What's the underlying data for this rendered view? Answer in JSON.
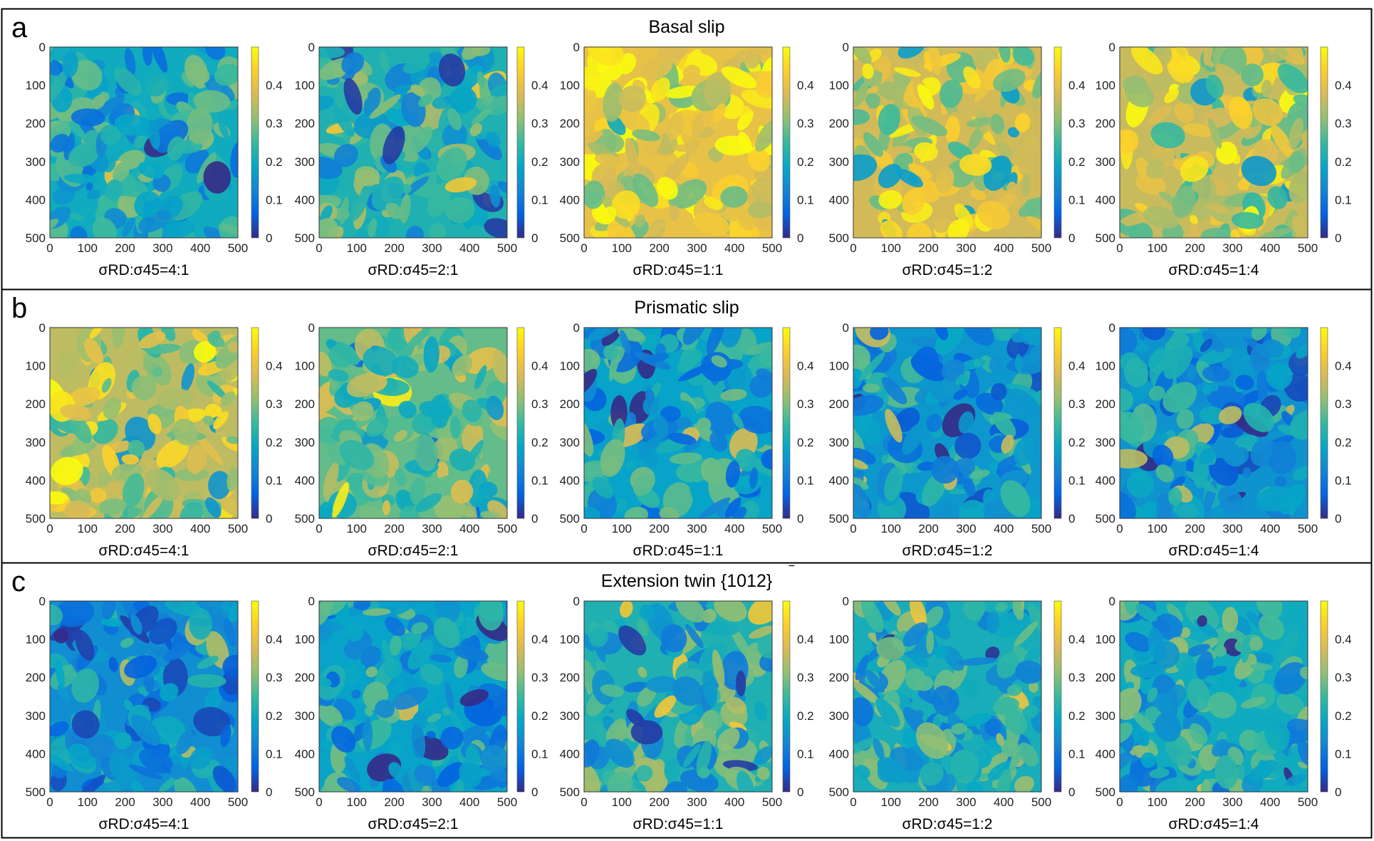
{
  "chart_data": {
    "type": "heatmap",
    "colormap": "parula",
    "colors": {
      "parula": [
        "#352a87",
        "#0363e1",
        "#1485d4",
        "#06a7c6",
        "#38b99e",
        "#92bf73",
        "#d9ba56",
        "#fcce2e",
        "#f9fb0e"
      ],
      "frame": "#000000",
      "axis": "#222222"
    },
    "xlim": [
      0,
      500
    ],
    "ylim": [
      500,
      0
    ],
    "xticks": [
      "0",
      "100",
      "200",
      "300",
      "400",
      "500"
    ],
    "yticks": [
      "0",
      "100",
      "200",
      "300",
      "400",
      "500"
    ],
    "clim": [
      0,
      0.5
    ],
    "colorbar_ticks": [
      "0",
      "0.1",
      "0.2",
      "0.3",
      "0.4"
    ],
    "panels": [
      {
        "letter": "a",
        "title": "Basal slip",
        "subplots": [
          {
            "label": "σRD:σ45=4:1",
            "mean_value": 0.2
          },
          {
            "label": "σRD:σ45=2:1",
            "mean_value": 0.22
          },
          {
            "label": "σRD:σ45=1:1",
            "mean_value": 0.4
          },
          {
            "label": "σRD:σ45=1:2",
            "mean_value": 0.37
          },
          {
            "label": "σRD:σ45=1:4",
            "mean_value": 0.36
          }
        ]
      },
      {
        "letter": "b",
        "title": "Prismatic slip",
        "subplots": [
          {
            "label": "σRD:σ45=4:1",
            "mean_value": 0.35
          },
          {
            "label": "σRD:σ45=2:1",
            "mean_value": 0.28
          },
          {
            "label": "σRD:σ45=1:1",
            "mean_value": 0.18
          },
          {
            "label": "σRD:σ45=1:2",
            "mean_value": 0.16
          },
          {
            "label": "σRD:σ45=1:4",
            "mean_value": 0.15
          }
        ]
      },
      {
        "letter": "c",
        "title": "Extension twin {1012}",
        "title_overbar": "‾",
        "subplots": [
          {
            "label": "σRD:σ45=4:1",
            "mean_value": 0.14
          },
          {
            "label": "σRD:σ45=2:1",
            "mean_value": 0.18
          },
          {
            "label": "σRD:σ45=1:1",
            "mean_value": 0.22
          },
          {
            "label": "σRD:σ45=1:2",
            "mean_value": 0.21
          },
          {
            "label": "σRD:σ45=1:4",
            "mean_value": 0.2
          }
        ]
      }
    ]
  }
}
